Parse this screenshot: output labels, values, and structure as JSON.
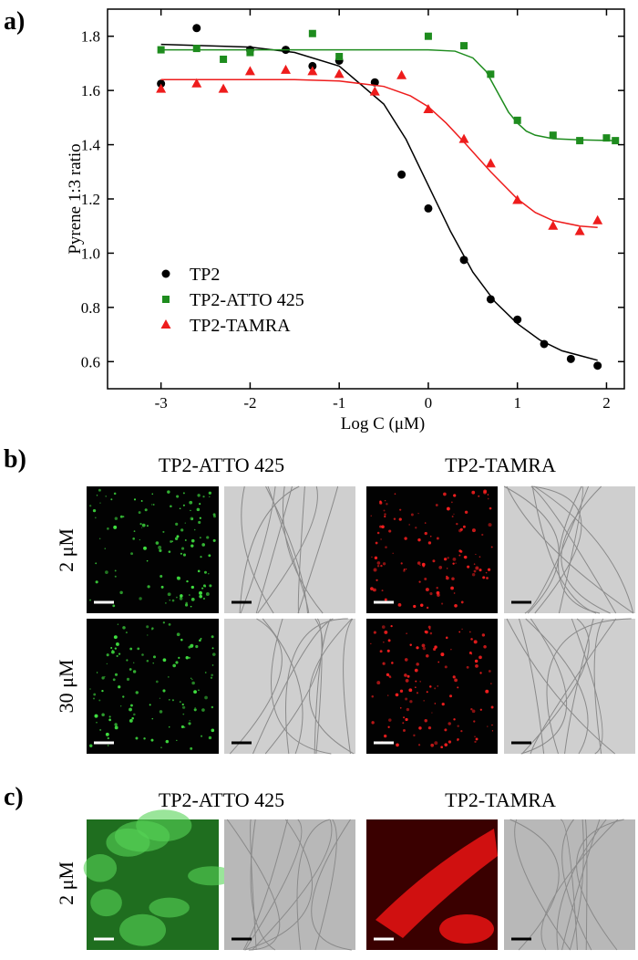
{
  "chart_data": {
    "type": "scatter",
    "x_label": "Log C (μM)",
    "y_label": "Pyrene 1:3 ratio",
    "xlim": [
      -3.6,
      2.2
    ],
    "ylim": [
      0.5,
      1.9
    ],
    "xticks": [
      -3,
      -2,
      -1,
      0,
      1,
      2
    ],
    "yticks": [
      0.6,
      0.8,
      {
        "value": 1.0,
        "label": "1.0"
      },
      1.2,
      1.4,
      1.6,
      1.8
    ],
    "series": [
      {
        "name": "TP2",
        "color": "#000000",
        "marker": "circle",
        "x": [
          -3,
          -2.6,
          -2,
          -1.6,
          -1.3,
          -1,
          -0.6,
          -0.3,
          0,
          0.4,
          0.7,
          1,
          1.3,
          1.6,
          1.9
        ],
        "values": [
          1.625,
          1.83,
          1.75,
          1.75,
          1.69,
          1.71,
          1.63,
          1.29,
          1.165,
          0.975,
          0.83,
          0.755,
          0.665,
          0.61,
          0.585
        ],
        "fit_x": [
          -3,
          -2,
          -1.5,
          -1,
          -0.5,
          -0.25,
          0,
          0.25,
          0.5,
          0.75,
          1,
          1.25,
          1.5,
          1.9
        ],
        "fit_values": [
          1.77,
          1.76,
          1.74,
          1.69,
          1.55,
          1.42,
          1.25,
          1.08,
          0.93,
          0.82,
          0.74,
          0.68,
          0.64,
          0.605
        ]
      },
      {
        "name": "TP2-ATTO 425",
        "color": "#1e8c1e",
        "marker": "square",
        "x": [
          -3,
          -2.6,
          -2.3,
          -2,
          -1.3,
          -1,
          0,
          0.4,
          0.7,
          1,
          1.4,
          1.7,
          2,
          2.1
        ],
        "values": [
          1.75,
          1.755,
          1.715,
          1.74,
          1.81,
          1.725,
          1.8,
          1.765,
          1.66,
          1.49,
          1.435,
          1.415,
          1.425,
          1.415
        ],
        "fit_x": [
          -3,
          0,
          0.3,
          0.5,
          0.65,
          0.8,
          0.9,
          1,
          1.1,
          1.2,
          1.4,
          1.7,
          2.1
        ],
        "fit_values": [
          1.75,
          1.75,
          1.745,
          1.72,
          1.67,
          1.58,
          1.52,
          1.48,
          1.45,
          1.435,
          1.422,
          1.418,
          1.415
        ]
      },
      {
        "name": "TP2-TAMRA",
        "color": "#ee1c1c",
        "marker": "triangle",
        "x": [
          -3,
          -2.6,
          -2.3,
          -2,
          -1.6,
          -1.3,
          -1,
          -0.6,
          -0.3,
          0,
          0.4,
          0.7,
          1,
          1.4,
          1.7,
          1.9
        ],
        "values": [
          1.605,
          1.625,
          1.605,
          1.67,
          1.675,
          1.67,
          1.66,
          1.595,
          1.655,
          1.53,
          1.42,
          1.33,
          1.195,
          1.1,
          1.08,
          1.12
        ],
        "fit_x": [
          -3,
          -1.5,
          -1,
          -0.5,
          -0.2,
          0,
          0.2,
          0.4,
          0.7,
          1,
          1.2,
          1.4,
          1.7,
          1.9
        ],
        "fit_values": [
          1.64,
          1.64,
          1.635,
          1.615,
          1.58,
          1.54,
          1.48,
          1.41,
          1.3,
          1.2,
          1.15,
          1.12,
          1.1,
          1.095
        ]
      }
    ]
  },
  "panels": {
    "a": "a)",
    "b": "b)",
    "c": "c)",
    "b_headers": [
      "TP2-ATTO 425",
      "TP2-TAMRA"
    ],
    "b_rows": [
      "2 μM",
      "30 μM"
    ],
    "c_headers": [
      "TP2-ATTO 425",
      "TP2-TAMRA"
    ],
    "c_rows": [
      "2 μM"
    ]
  }
}
